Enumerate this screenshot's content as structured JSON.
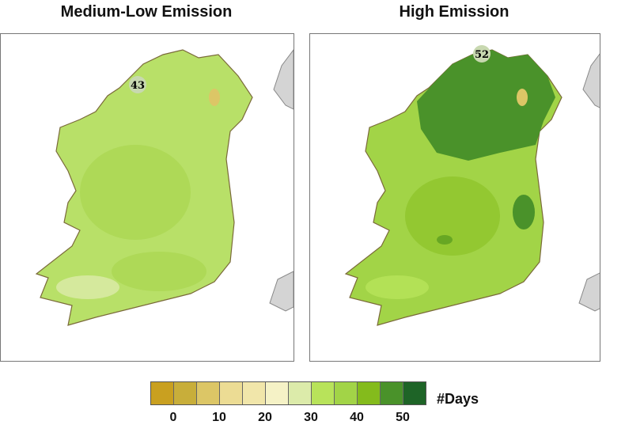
{
  "titles": {
    "left": "Medium-Low Emission",
    "right": "High Emission"
  },
  "maps": {
    "left": {
      "max_label": "43"
    },
    "right": {
      "max_label": "52"
    }
  },
  "colorbar": {
    "unit": "#Days",
    "ticks": [
      "0",
      "10",
      "20",
      "30",
      "40",
      "50"
    ],
    "colors": [
      "#c9a020",
      "#c8ae3a",
      "#dcc666",
      "#ecdc94",
      "#f1e6aa",
      "#f5f2c6",
      "#dcebaa",
      "#b8e35a",
      "#a2d447",
      "#84bb1c",
      "#4a922a",
      "#1e6427"
    ]
  }
}
